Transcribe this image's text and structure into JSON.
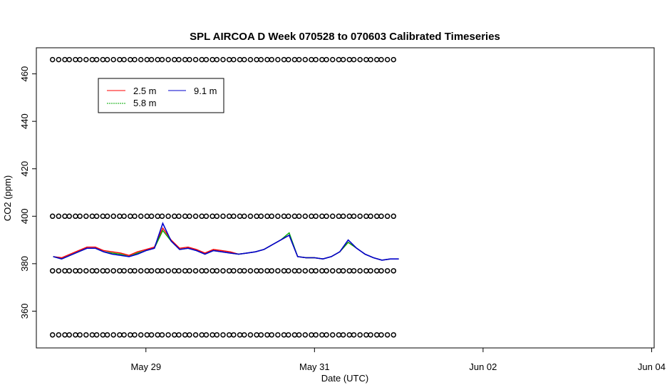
{
  "chart_data": {
    "type": "line",
    "title": "SPL AIRCOA D  Week 070528 to 070603  Calibrated Timeseries",
    "xlabel": "Date (UTC)",
    "ylabel": "CO2 (ppm)",
    "x_tick_labels": [
      "May 29",
      "May 31",
      "Jun 02",
      "Jun 04"
    ],
    "x_tick_values": [
      1.0,
      3.0,
      5.0,
      7.0
    ],
    "xlim": [
      -0.3,
      7.03
    ],
    "y_ticks": [
      360,
      380,
      400,
      420,
      440,
      460
    ],
    "ylim": [
      344.5,
      471
    ],
    "grid": false,
    "legend_position": "top-left",
    "series": [
      {
        "name": "2.5 m",
        "color": "#ff0000",
        "x": [
          -0.1,
          0.0,
          0.1,
          0.2,
          0.3,
          0.4,
          0.5,
          0.6,
          0.7,
          0.8,
          0.9,
          1.0,
          1.1,
          1.2,
          1.3,
          1.4,
          1.5,
          1.6,
          1.7,
          1.8,
          1.9,
          2.0,
          2.1,
          2.2,
          2.3,
          2.4,
          2.5,
          2.6,
          2.7,
          2.8,
          2.9,
          3.0,
          3.1,
          3.2,
          3.3,
          3.4,
          3.5,
          3.6,
          3.7,
          3.8,
          3.9,
          4.0
        ],
        "values": [
          383,
          382.5,
          384,
          385.5,
          387,
          387,
          385.5,
          385,
          384.5,
          383.5,
          385,
          386,
          387,
          395,
          390,
          386.5,
          387,
          386,
          384.5,
          386,
          385.5,
          385,
          384,
          384.5,
          385,
          386,
          388,
          390,
          392,
          383,
          382.5,
          382.5,
          382,
          383,
          385,
          389,
          386.5,
          384,
          382.5,
          381.5,
          382,
          382
        ]
      },
      {
        "name": "5.8 m",
        "color": "#00aa00",
        "x": [
          -0.1,
          0.0,
          0.1,
          0.2,
          0.3,
          0.4,
          0.5,
          0.6,
          0.7,
          0.8,
          0.9,
          1.0,
          1.1,
          1.2,
          1.3,
          1.4,
          1.5,
          1.6,
          1.7,
          1.8,
          1.9,
          2.0,
          2.1,
          2.2,
          2.3,
          2.4,
          2.5,
          2.6,
          2.7,
          2.8,
          2.9,
          3.0,
          3.1,
          3.2,
          3.3,
          3.4,
          3.5,
          3.6,
          3.7,
          3.8,
          3.9,
          4.0
        ],
        "values": [
          383,
          382,
          383.5,
          385,
          386.5,
          386.5,
          385,
          384.5,
          384,
          383,
          384.5,
          385.5,
          386.5,
          394,
          389.5,
          386,
          386.5,
          385.5,
          384,
          385.5,
          385,
          384.5,
          384,
          384.5,
          385,
          386,
          388,
          390,
          393,
          383,
          382.5,
          382.5,
          382,
          383,
          385,
          389,
          386.5,
          384,
          382.5,
          381.5,
          382,
          382
        ]
      },
      {
        "name": "9.1 m",
        "color": "#0000cc",
        "x": [
          -0.1,
          0.0,
          0.1,
          0.2,
          0.3,
          0.4,
          0.5,
          0.6,
          0.7,
          0.8,
          0.9,
          1.0,
          1.1,
          1.2,
          1.3,
          1.4,
          1.5,
          1.6,
          1.7,
          1.8,
          1.9,
          2.0,
          2.1,
          2.2,
          2.3,
          2.4,
          2.5,
          2.6,
          2.7,
          2.8,
          2.9,
          3.0,
          3.1,
          3.2,
          3.3,
          3.4,
          3.5,
          3.6,
          3.7,
          3.8,
          3.9,
          4.0
        ],
        "values": [
          383,
          382,
          383.5,
          385,
          386.5,
          386.5,
          385,
          384,
          383.5,
          383,
          384,
          385.5,
          386.5,
          397,
          389.5,
          386,
          386.5,
          385.5,
          384,
          385.5,
          385,
          384.5,
          384,
          384.5,
          385,
          386,
          388,
          390,
          392,
          383,
          382.5,
          382.5,
          382,
          383,
          385,
          390,
          386.5,
          384,
          382.5,
          381.5,
          382,
          382
        ]
      }
    ],
    "calibration_points": {
      "marker": "o",
      "levels": [
        466,
        400,
        377,
        350
      ],
      "x_start": -0.1,
      "x_end": 3.98,
      "spacing": 0.065
    }
  }
}
